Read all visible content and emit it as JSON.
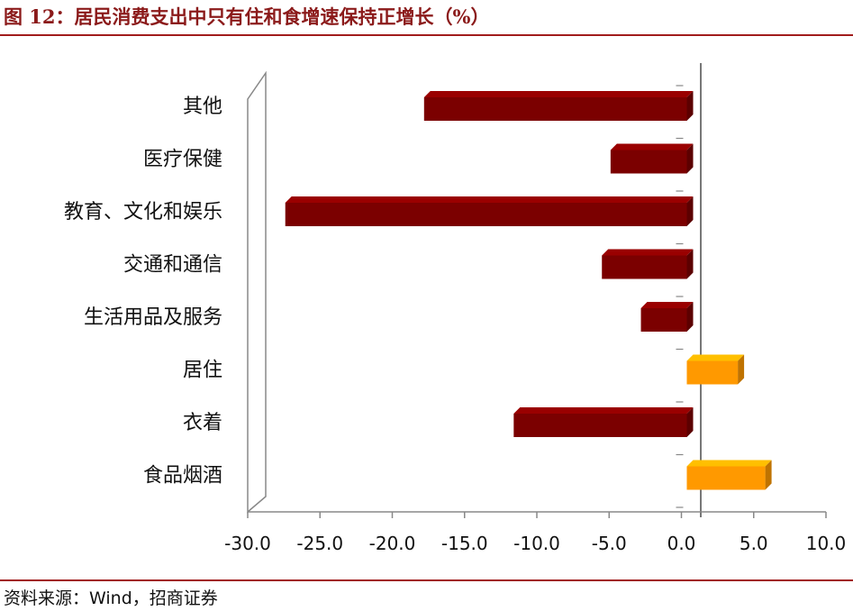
{
  "header": {
    "title": "图 12：居民消费支出中只有住和食增速保持正增长（%）"
  },
  "footer": {
    "source": "资料来源：Wind，招商证券"
  },
  "colors": {
    "negative_bar": "#7b0000",
    "positive_bar": "#ff9900",
    "title": "#8b1a1a",
    "rule": "#a11c1c"
  },
  "chart_data": {
    "type": "bar",
    "orientation": "horizontal",
    "title": "",
    "xlabel": "",
    "ylabel": "",
    "categories": [
      "其他",
      "医疗保健",
      "教育、文化和娱乐",
      "交通和通信",
      "生活用品及服务",
      "居住",
      "衣着",
      "食品烟酒"
    ],
    "values": [
      -17.8,
      -4.9,
      -27.4,
      -5.5,
      -2.8,
      3.9,
      -11.6,
      5.8
    ],
    "xlim": [
      -30,
      10
    ],
    "xticks": [
      "-30.0",
      "-25.0",
      "-20.0",
      "-15.0",
      "-10.0",
      "-5.0",
      "0.0",
      "5.0",
      "10.0"
    ],
    "grid": false,
    "legend": "none",
    "style": "3d"
  }
}
